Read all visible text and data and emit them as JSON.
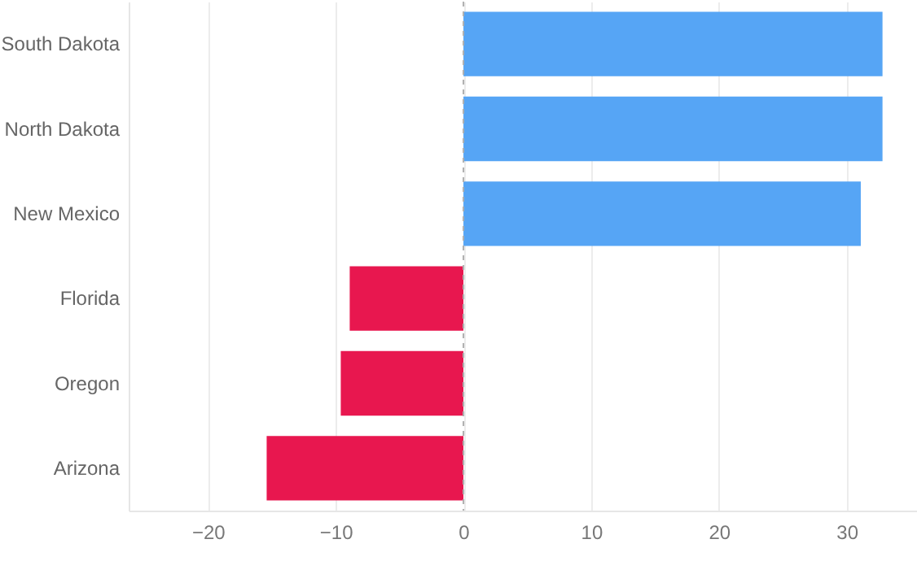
{
  "chart_data": {
    "type": "bar",
    "orientation": "horizontal",
    "categories": [
      "South Dakota",
      "North Dakota",
      "New Mexico",
      "Florida",
      "Oregon",
      "Arizona"
    ],
    "values": [
      32.8,
      32.8,
      31.1,
      -8.9,
      -9.6,
      -15.4
    ],
    "colors": [
      "#56a5f5",
      "#56a5f5",
      "#56a5f5",
      "#e8174f",
      "#e8174f",
      "#e8174f"
    ],
    "xlim": [
      -26.2,
      35.5
    ],
    "xticks": [
      -20,
      -10,
      0,
      10,
      20,
      30
    ],
    "grid": "x",
    "ref_lines": [
      {
        "axis": "x",
        "value": 0,
        "line_style": "dashed",
        "color": "#b0b0b0"
      }
    ]
  }
}
